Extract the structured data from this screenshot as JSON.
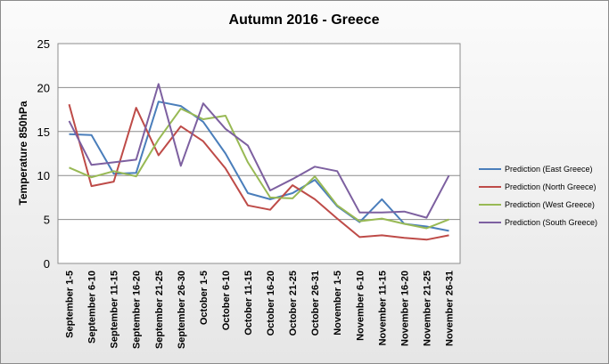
{
  "chart_data": {
    "type": "line",
    "title": "Autumn 2016 - Greece",
    "xlabel": "",
    "ylabel": "Temperature 850hPa",
    "ylim": [
      0,
      25
    ],
    "yticks": [
      0,
      5,
      10,
      15,
      20,
      25
    ],
    "grid": "horizontal",
    "legend_position": "right",
    "categories": [
      "September 1-5",
      "September 6-10",
      "September 11-15",
      "September 16-20",
      "September 21-25",
      "September 26-30",
      "October 1-5",
      "October 6-10",
      "October 11-15",
      "October 16-20",
      "October 21-25",
      "October 26-31",
      "November 1-5",
      "November 6-10",
      "November 11-15",
      "November 16-20",
      "November 21-25",
      "November 26-31"
    ],
    "series": [
      {
        "name": "Prediction (East Greece)",
        "color": "#4a7ebb",
        "values": [
          14.7,
          14.6,
          10.2,
          10.3,
          18.4,
          17.9,
          16.1,
          12.5,
          8.0,
          7.3,
          8.0,
          9.5,
          6.5,
          4.7,
          7.3,
          4.5,
          4.2,
          3.7
        ]
      },
      {
        "name": "Prediction (North Greece)",
        "color": "#be4b48",
        "values": [
          18.1,
          8.8,
          9.3,
          17.7,
          12.3,
          15.6,
          13.9,
          10.8,
          6.6,
          6.1,
          8.9,
          7.3,
          5.1,
          3.0,
          3.2,
          2.9,
          2.7,
          3.2
        ]
      },
      {
        "name": "Prediction (West Greece)",
        "color": "#98b954",
        "values": [
          10.9,
          9.8,
          10.5,
          9.9,
          14.1,
          17.6,
          16.4,
          16.8,
          11.5,
          7.5,
          7.4,
          9.9,
          6.6,
          4.8,
          5.1,
          4.5,
          4.0,
          5.0
        ]
      },
      {
        "name": "Prediction (South Greece)",
        "color": "#7d60a0",
        "values": [
          16.2,
          11.2,
          11.5,
          11.8,
          20.4,
          11.1,
          18.2,
          15.3,
          13.4,
          8.3,
          9.6,
          11.0,
          10.5,
          5.8,
          5.8,
          5.9,
          5.2,
          10.0
        ]
      }
    ]
  }
}
